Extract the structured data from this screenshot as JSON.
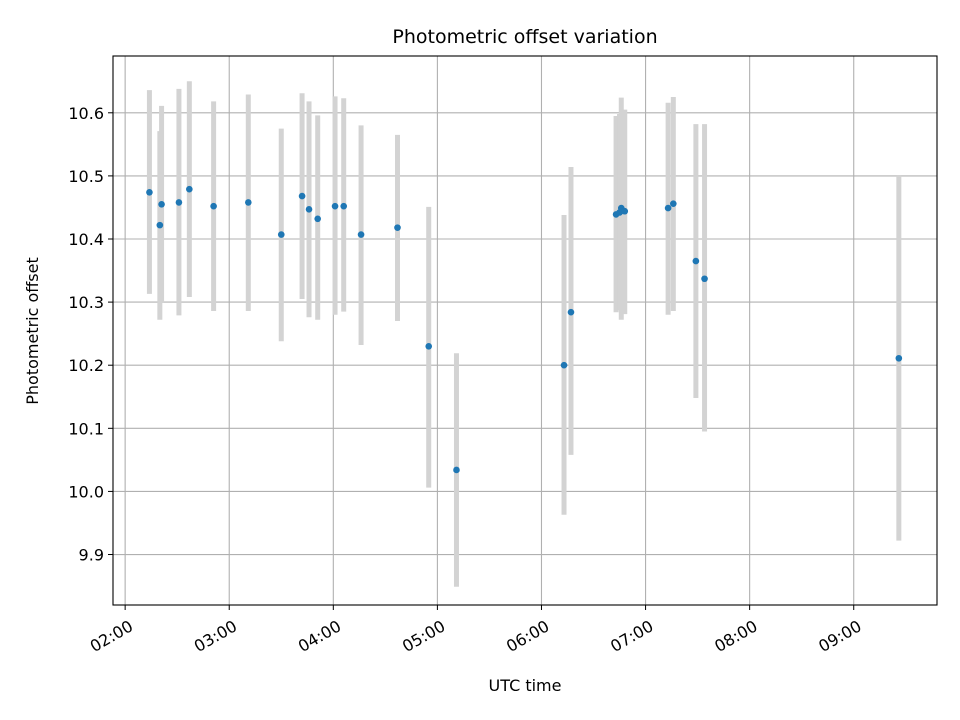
{
  "chart_data": {
    "type": "scatter",
    "title": "Photometric offset variation",
    "xlabel": "UTC time",
    "ylabel": "Photometric offset",
    "x_unit": "hours (UTC)",
    "xlim": [
      "01:53",
      "09:48"
    ],
    "ylim": [
      9.82,
      10.69
    ],
    "x_ticks": [
      {
        "value": "02:00",
        "label": "02:00"
      },
      {
        "value": "03:00",
        "label": "03:00"
      },
      {
        "value": "04:00",
        "label": "04:00"
      },
      {
        "value": "05:00",
        "label": "05:00"
      },
      {
        "value": "06:00",
        "label": "06:00"
      },
      {
        "value": "07:00",
        "label": "07:00"
      },
      {
        "value": "08:00",
        "label": "08:00"
      },
      {
        "value": "09:00",
        "label": "09:00"
      }
    ],
    "y_ticks": [
      {
        "value": 9.9,
        "label": "9.9"
      },
      {
        "value": 10.0,
        "label": "10.0"
      },
      {
        "value": 10.1,
        "label": "10.1"
      },
      {
        "value": 10.2,
        "label": "10.2"
      },
      {
        "value": 10.3,
        "label": "10.3"
      },
      {
        "value": 10.4,
        "label": "10.4"
      },
      {
        "value": 10.5,
        "label": "10.5"
      },
      {
        "value": 10.6,
        "label": "10.6"
      }
    ],
    "grid": true,
    "marker_color": "#1f77b4",
    "errorbar_color": "#d3d3d3",
    "points": [
      {
        "x": "02:14",
        "y": 10.474,
        "err_low": 10.313,
        "err_high": 10.636
      },
      {
        "x": "02:20",
        "y": 10.422,
        "err_low": 10.272,
        "err_high": 10.571
      },
      {
        "x": "02:21",
        "y": 10.455,
        "err_low": 10.3,
        "err_high": 10.611
      },
      {
        "x": "02:31",
        "y": 10.458,
        "err_low": 10.279,
        "err_high": 10.638
      },
      {
        "x": "02:37",
        "y": 10.479,
        "err_low": 10.308,
        "err_high": 10.65
      },
      {
        "x": "02:51",
        "y": 10.452,
        "err_low": 10.286,
        "err_high": 10.618
      },
      {
        "x": "03:11",
        "y": 10.458,
        "err_low": 10.286,
        "err_high": 10.629
      },
      {
        "x": "03:30",
        "y": 10.407,
        "err_low": 10.238,
        "err_high": 10.575
      },
      {
        "x": "03:42",
        "y": 10.468,
        "err_low": 10.305,
        "err_high": 10.631
      },
      {
        "x": "03:46",
        "y": 10.447,
        "err_low": 10.276,
        "err_high": 10.618
      },
      {
        "x": "03:51",
        "y": 10.432,
        "err_low": 10.272,
        "err_high": 10.596
      },
      {
        "x": "04:01",
        "y": 10.452,
        "err_low": 10.28,
        "err_high": 10.626
      },
      {
        "x": "04:06",
        "y": 10.452,
        "err_low": 10.285,
        "err_high": 10.623
      },
      {
        "x": "04:16",
        "y": 10.407,
        "err_low": 10.232,
        "err_high": 10.58
      },
      {
        "x": "04:37",
        "y": 10.418,
        "err_low": 10.27,
        "err_high": 10.565
      },
      {
        "x": "04:55",
        "y": 10.23,
        "err_low": 10.006,
        "err_high": 10.451
      },
      {
        "x": "05:11",
        "y": 10.034,
        "err_low": 9.849,
        "err_high": 10.219
      },
      {
        "x": "06:13",
        "y": 10.2,
        "err_low": 9.963,
        "err_high": 10.438
      },
      {
        "x": "06:17",
        "y": 10.284,
        "err_low": 10.058,
        "err_high": 10.514
      },
      {
        "x": "06:43",
        "y": 10.439,
        "err_low": 10.284,
        "err_high": 10.595
      },
      {
        "x": "06:45",
        "y": 10.442,
        "err_low": 10.287,
        "err_high": 10.598
      },
      {
        "x": "06:46",
        "y": 10.449,
        "err_low": 10.272,
        "err_high": 10.624
      },
      {
        "x": "06:48",
        "y": 10.444,
        "err_low": 10.281,
        "err_high": 10.605
      },
      {
        "x": "07:13",
        "y": 10.449,
        "err_low": 10.28,
        "err_high": 10.616
      },
      {
        "x": "07:16",
        "y": 10.456,
        "err_low": 10.286,
        "err_high": 10.625
      },
      {
        "x": "07:29",
        "y": 10.365,
        "err_low": 10.148,
        "err_high": 10.582
      },
      {
        "x": "07:34",
        "y": 10.337,
        "err_low": 10.095,
        "err_high": 10.582
      },
      {
        "x": "09:26",
        "y": 10.211,
        "err_low": 9.922,
        "err_high": 10.5
      }
    ]
  }
}
